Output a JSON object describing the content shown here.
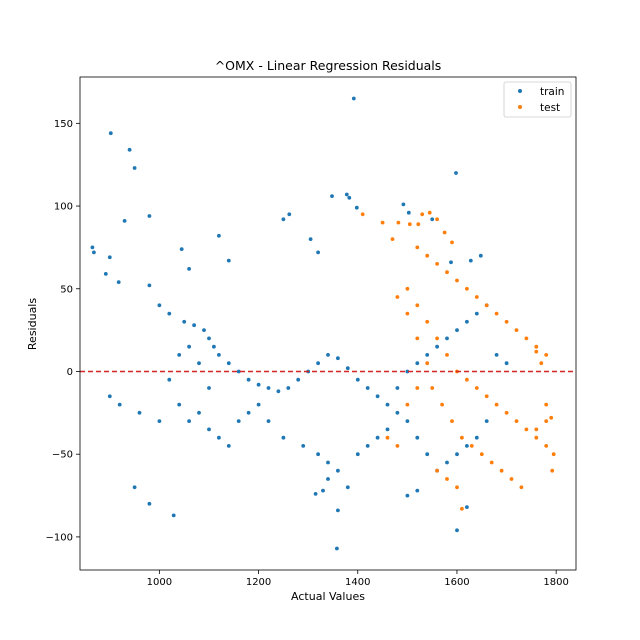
{
  "chart_data": {
    "type": "scatter",
    "title": "^OMX - Linear Regression Residuals",
    "xlabel": "Actual Values",
    "ylabel": "Residuals",
    "xlim": [
      840,
      1840
    ],
    "ylim": [
      -120,
      178
    ],
    "x_ticks": [
      1000,
      1200,
      1400,
      1600,
      1800
    ],
    "y_ticks": [
      -100,
      -50,
      0,
      50,
      100,
      150
    ],
    "x_tick_labels": [
      "1000",
      "1200",
      "1400",
      "1600",
      "1800"
    ],
    "y_tick_labels": [
      "−100",
      "−50",
      "0",
      "50",
      "100",
      "150"
    ],
    "reference_line": {
      "y": 0,
      "style": "dashed",
      "color": "#d62728"
    },
    "legend_position": "top-right",
    "grid": false,
    "series": [
      {
        "name": "train",
        "color": "#1f77b4",
        "points": [
          [
            902,
            144
          ],
          [
            940,
            134
          ],
          [
            950,
            123
          ],
          [
            1392,
            165
          ],
          [
            1598,
            120
          ],
          [
            980,
            94
          ],
          [
            930,
            91
          ],
          [
            865,
            75
          ],
          [
            868,
            72
          ],
          [
            900,
            69
          ],
          [
            892,
            59
          ],
          [
            918,
            54
          ],
          [
            1045,
            74
          ],
          [
            1060,
            62
          ],
          [
            1120,
            82
          ],
          [
            1140,
            67
          ],
          [
            1250,
            92
          ],
          [
            1262,
            95
          ],
          [
            1305,
            80
          ],
          [
            1320,
            72
          ],
          [
            1348,
            106
          ],
          [
            1378,
            107
          ],
          [
            1383,
            105
          ],
          [
            1398,
            99
          ],
          [
            1492,
            101
          ],
          [
            1503,
            96
          ],
          [
            1550,
            92
          ],
          [
            1588,
            66
          ],
          [
            1628,
            67
          ],
          [
            1648,
            70
          ],
          [
            980,
            52
          ],
          [
            1000,
            40
          ],
          [
            1020,
            35
          ],
          [
            1050,
            30
          ],
          [
            1070,
            28
          ],
          [
            1090,
            25
          ],
          [
            1100,
            20
          ],
          [
            1110,
            15
          ],
          [
            1120,
            10
          ],
          [
            1140,
            5
          ],
          [
            1160,
            0
          ],
          [
            1180,
            -5
          ],
          [
            1200,
            -8
          ],
          [
            1220,
            -10
          ],
          [
            1240,
            -12
          ],
          [
            1260,
            -10
          ],
          [
            1280,
            -5
          ],
          [
            1300,
            0
          ],
          [
            1320,
            5
          ],
          [
            1340,
            10
          ],
          [
            1360,
            8
          ],
          [
            1380,
            2
          ],
          [
            1400,
            -5
          ],
          [
            1420,
            -10
          ],
          [
            1440,
            -15
          ],
          [
            1460,
            -20
          ],
          [
            1480,
            -10
          ],
          [
            1500,
            0
          ],
          [
            1520,
            5
          ],
          [
            1540,
            10
          ],
          [
            1560,
            15
          ],
          [
            1580,
            20
          ],
          [
            1600,
            25
          ],
          [
            1620,
            30
          ],
          [
            1640,
            35
          ],
          [
            1660,
            40
          ],
          [
            1680,
            10
          ],
          [
            1700,
            5
          ],
          [
            1040,
            -20
          ],
          [
            1060,
            -30
          ],
          [
            1080,
            -25
          ],
          [
            1100,
            -35
          ],
          [
            1120,
            -40
          ],
          [
            1140,
            -45
          ],
          [
            1160,
            -30
          ],
          [
            1180,
            -25
          ],
          [
            1200,
            -20
          ],
          [
            1220,
            -30
          ],
          [
            1250,
            -40
          ],
          [
            1290,
            -45
          ],
          [
            1320,
            -50
          ],
          [
            1340,
            -55
          ],
          [
            1360,
            -60
          ],
          [
            1380,
            -70
          ],
          [
            1400,
            -50
          ],
          [
            1420,
            -45
          ],
          [
            1440,
            -40
          ],
          [
            1460,
            -35
          ],
          [
            1480,
            -25
          ],
          [
            1500,
            -30
          ],
          [
            1520,
            -40
          ],
          [
            1540,
            -50
          ],
          [
            1560,
            -60
          ],
          [
            1580,
            -55
          ],
          [
            1600,
            -50
          ],
          [
            1620,
            -45
          ],
          [
            1640,
            -40
          ],
          [
            1660,
            -30
          ],
          [
            1029,
            -87
          ],
          [
            1358,
            -107
          ],
          [
            1360,
            -84
          ],
          [
            1315,
            -74
          ],
          [
            1600,
            -96
          ],
          [
            1620,
            -82
          ],
          [
            1330,
            -72
          ],
          [
            1340,
            -65
          ],
          [
            950,
            -70
          ],
          [
            980,
            -80
          ],
          [
            1500,
            -75
          ],
          [
            1520,
            -72
          ],
          [
            1100,
            -10
          ],
          [
            1080,
            5
          ],
          [
            1060,
            15
          ],
          [
            1040,
            10
          ],
          [
            1020,
            -5
          ],
          [
            900,
            -15
          ],
          [
            920,
            -20
          ],
          [
            960,
            -25
          ],
          [
            1000,
            -30
          ]
        ]
      },
      {
        "name": "test",
        "color": "#ff7f0e",
        "points": [
          [
            1410,
            95
          ],
          [
            1450,
            90
          ],
          [
            1482,
            90
          ],
          [
            1505,
            89
          ],
          [
            1522,
            89
          ],
          [
            1530,
            95
          ],
          [
            1545,
            96
          ],
          [
            1560,
            92
          ],
          [
            1575,
            84
          ],
          [
            1590,
            78
          ],
          [
            1470,
            80
          ],
          [
            1520,
            75
          ],
          [
            1540,
            70
          ],
          [
            1560,
            65
          ],
          [
            1580,
            60
          ],
          [
            1600,
            55
          ],
          [
            1620,
            50
          ],
          [
            1640,
            45
          ],
          [
            1660,
            40
          ],
          [
            1680,
            35
          ],
          [
            1700,
            30
          ],
          [
            1720,
            25
          ],
          [
            1740,
            20
          ],
          [
            1760,
            15
          ],
          [
            1780,
            10
          ],
          [
            1500,
            50
          ],
          [
            1520,
            40
          ],
          [
            1540,
            30
          ],
          [
            1560,
            20
          ],
          [
            1580,
            10
          ],
          [
            1600,
            0
          ],
          [
            1620,
            -5
          ],
          [
            1640,
            -10
          ],
          [
            1660,
            -15
          ],
          [
            1680,
            -20
          ],
          [
            1700,
            -25
          ],
          [
            1720,
            -30
          ],
          [
            1740,
            -35
          ],
          [
            1760,
            -40
          ],
          [
            1780,
            -45
          ],
          [
            1795,
            -50
          ],
          [
            1792,
            -60
          ],
          [
            1550,
            -10
          ],
          [
            1570,
            -20
          ],
          [
            1590,
            -30
          ],
          [
            1610,
            -40
          ],
          [
            1630,
            -45
          ],
          [
            1650,
            -50
          ],
          [
            1670,
            -55
          ],
          [
            1690,
            -60
          ],
          [
            1710,
            -65
          ],
          [
            1730,
            -70
          ],
          [
            1560,
            -60
          ],
          [
            1580,
            -65
          ],
          [
            1600,
            -70
          ],
          [
            1610,
            -83
          ],
          [
            1480,
            -45
          ],
          [
            1460,
            -40
          ],
          [
            1500,
            -20
          ],
          [
            1520,
            -10
          ],
          [
            1540,
            5
          ],
          [
            1520,
            20
          ],
          [
            1500,
            35
          ],
          [
            1480,
            45
          ],
          [
            1760,
            -35
          ],
          [
            1780,
            -30
          ],
          [
            1790,
            -28
          ],
          [
            1780,
            -20
          ],
          [
            1770,
            5
          ],
          [
            1760,
            12
          ]
        ]
      }
    ]
  }
}
